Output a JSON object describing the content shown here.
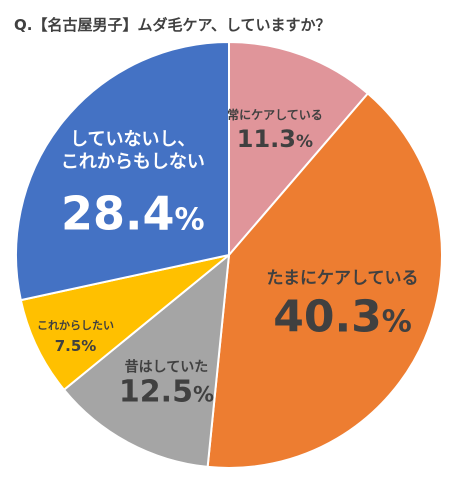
{
  "chart_data": {
    "type": "pie",
    "title": "Q.【名古屋男子】ムダ毛ケア、していますか？",
    "start_angle_deg": 0,
    "direction": "clockwise",
    "slices": [
      {
        "label": "常にケアしている",
        "value": 11.3,
        "display": "11.3%",
        "color": "#E0959A",
        "text_color": "#404040"
      },
      {
        "label": "たまにケアしている",
        "value": 40.3,
        "display": "40.3%",
        "color": "#ED7D31",
        "text_color": "#404040"
      },
      {
        "label": "昔はしていた",
        "value": 12.5,
        "display": "12.5%",
        "color": "#A5A5A5",
        "text_color": "#404040"
      },
      {
        "label": "これからしたい",
        "value": 7.5,
        "display": "7.5%",
        "color": "#FFC000",
        "text_color": "#404040"
      },
      {
        "label": "していないし、\nこれからもしない",
        "value": 28.4,
        "display": "28.4%",
        "color": "#4472C4",
        "text_color": "#FFFFFF"
      }
    ]
  }
}
